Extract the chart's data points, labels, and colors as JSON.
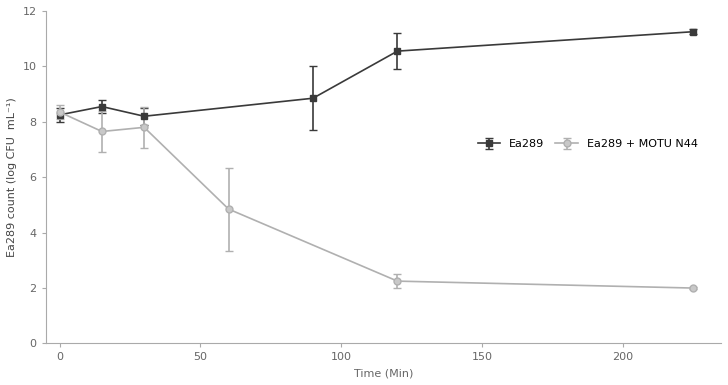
{
  "ea289_x": [
    0,
    15,
    30,
    90,
    120,
    225
  ],
  "ea289_y": [
    8.25,
    8.55,
    8.2,
    8.85,
    10.55,
    11.25
  ],
  "ea289_yerr": [
    0.25,
    0.25,
    0.3,
    1.15,
    0.65,
    0.1
  ],
  "motu_x": [
    0,
    15,
    30,
    60,
    120,
    225
  ],
  "motu_y": [
    8.35,
    7.65,
    7.8,
    4.85,
    2.25,
    2.0
  ],
  "motu_yerr": [
    0.25,
    0.75,
    0.75,
    1.5,
    0.25,
    0.05
  ],
  "ea289_color": "#3a3a3a",
  "motu_color": "#b0b0b0",
  "ea289_label": "Ea289",
  "motu_label": "Ea289 + MOTU N44",
  "xlabel": "Time (Min)",
  "ylabel": "Ea289 count (log CFU  mL⁻¹)",
  "xlim": [
    -5,
    235
  ],
  "ylim": [
    0,
    12
  ],
  "xticks": [
    0,
    50,
    100,
    150,
    200
  ],
  "yticks": [
    0,
    2,
    4,
    6,
    8,
    10,
    12
  ],
  "figure_width": 7.28,
  "figure_height": 3.85,
  "dpi": 100,
  "background_color": "#ffffff"
}
